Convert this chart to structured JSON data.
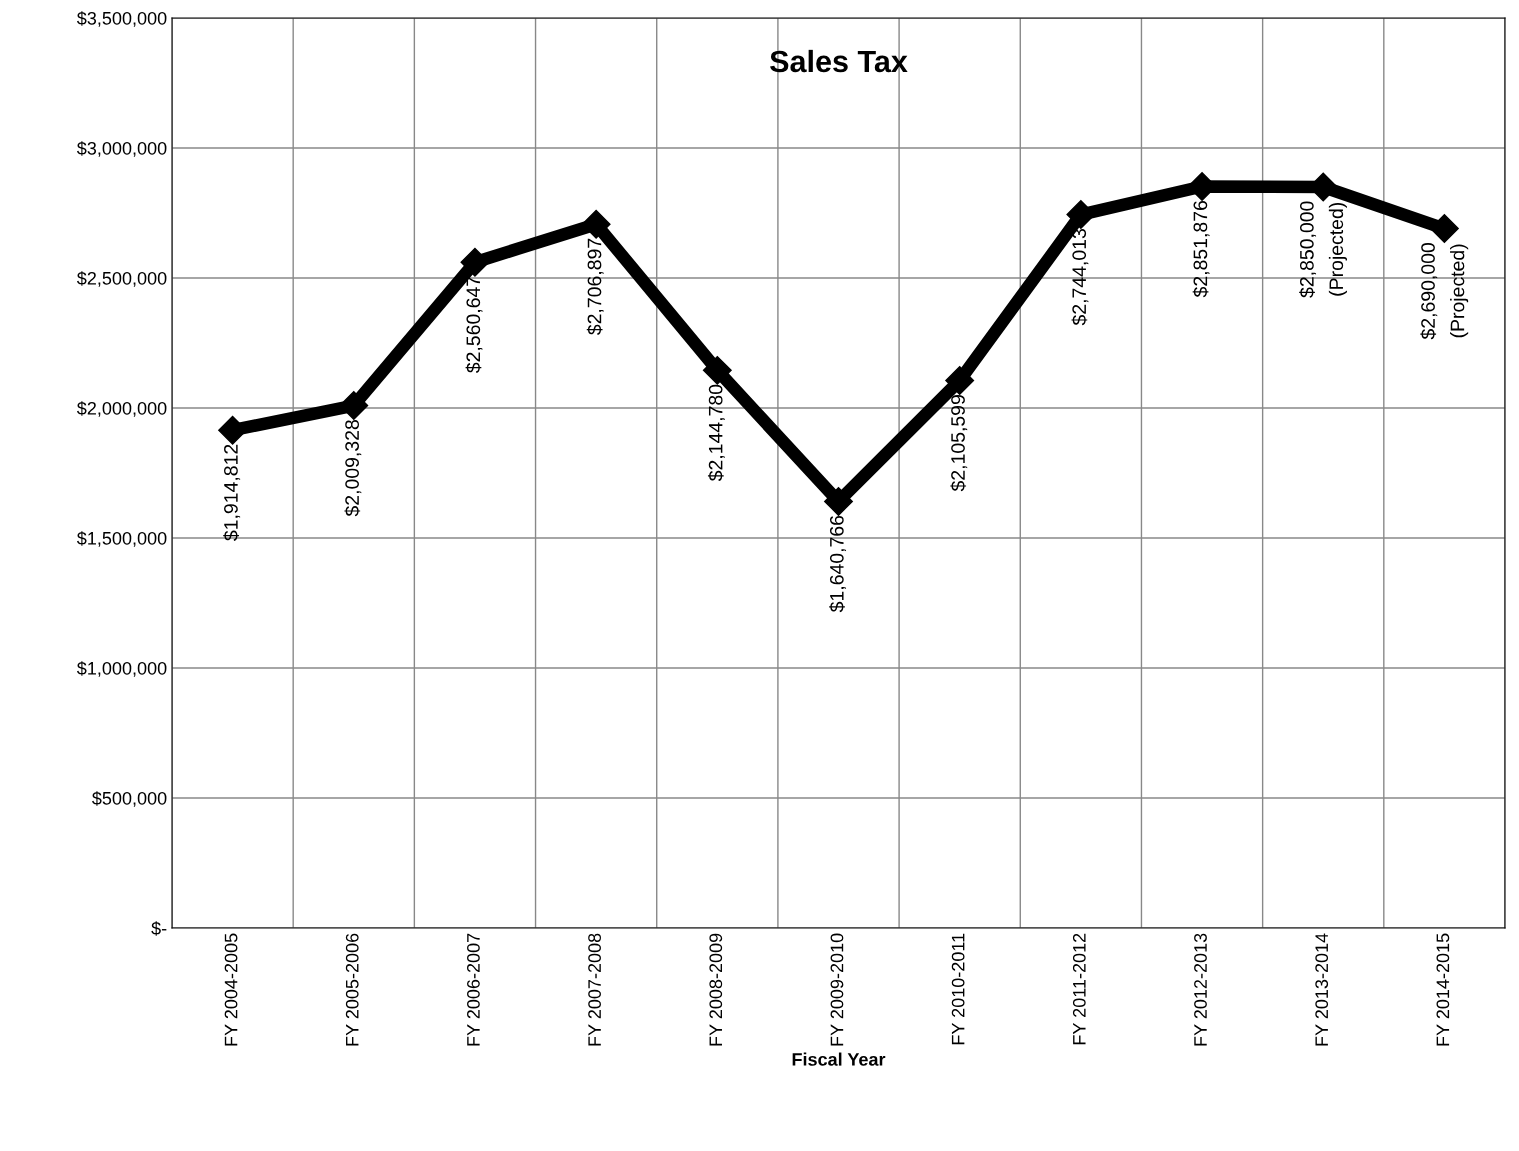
{
  "chart_data": {
    "type": "line",
    "title": "Sales Tax",
    "xlabel": "Fiscal Year",
    "categories": [
      "FY 2004-2005",
      "FY 2005-2006",
      "FY 2006-2007",
      "FY 2007-2008",
      "FY 2008-2009",
      "FY 2009-2010",
      "FY 2010-2011",
      "FY 2011-2012",
      "FY 2012-2013",
      "FY 2013-2014",
      "FY 2014-2015"
    ],
    "series": [
      {
        "color": "#000000",
        "values": [
          1914812,
          2009328,
          2560647,
          2706897,
          2144780,
          1640766,
          2105599,
          2744013,
          2851876,
          2850000,
          2690000
        ],
        "value_labels": [
          "$1,914,812",
          "$2,009,328",
          "$2,560,647",
          "$2,706,897",
          "$2,144,780",
          "$1,640,766",
          "$2,105,599",
          "$2,744,013",
          "$2,851,876",
          "$2,850,000\n(Projected)",
          "$2,690,000\n(Projected)"
        ]
      }
    ],
    "ylim": [
      0,
      3500000
    ],
    "yticks": [
      {
        "value": 0,
        "label": "$-"
      },
      {
        "value": 500000,
        "label": "$500,000"
      },
      {
        "value": 1000000,
        "label": "$1,000,000"
      },
      {
        "value": 1500000,
        "label": "$1,500,000"
      },
      {
        "value": 2000000,
        "label": "$2,000,000"
      },
      {
        "value": 2500000,
        "label": "$2,500,000"
      },
      {
        "value": 3000000,
        "label": "$3,000,000"
      },
      {
        "value": 3500000,
        "label": "$3,500,000"
      }
    ],
    "grid": true,
    "marker": "diamond",
    "line_style": "solid",
    "legend": false
  }
}
